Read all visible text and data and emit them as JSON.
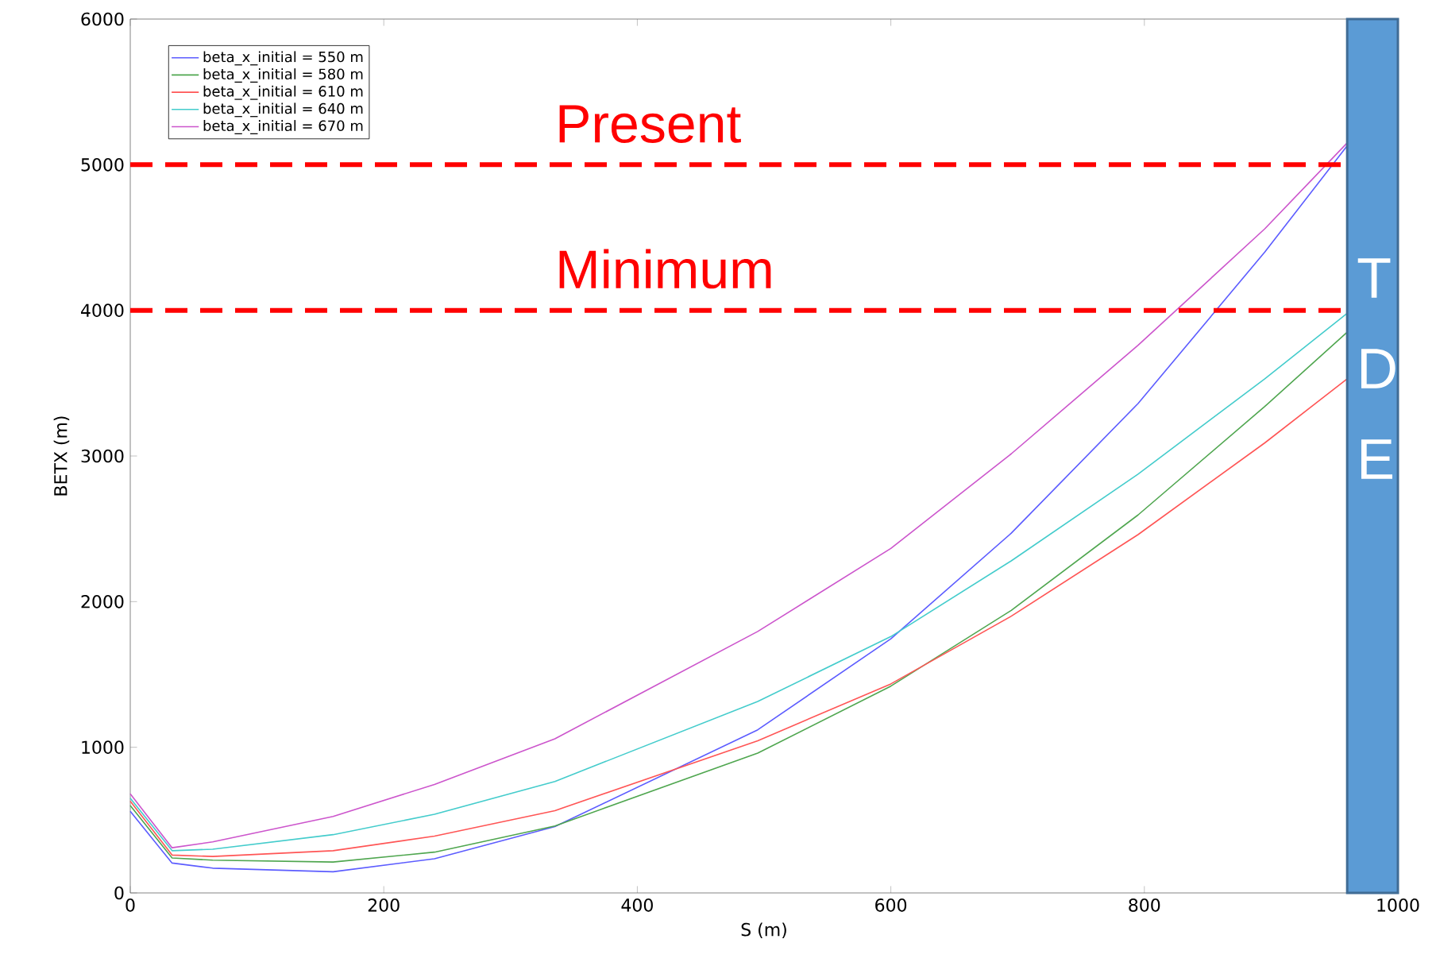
{
  "chart_data": {
    "type": "line",
    "xlabel": "S (m)",
    "ylabel": "BETX (m)",
    "x": [
      0,
      33,
      65,
      160,
      240,
      335,
      495,
      600,
      695,
      795,
      895,
      960
    ],
    "series": [
      {
        "name": "beta_x_initial = 550 m",
        "color": "#5c5cff",
        "values": [
          560,
          205,
          170,
          145,
          235,
          455,
          1120,
          1745,
          2470,
          3360,
          4400,
          5130
        ]
      },
      {
        "name": "beta_x_initial = 580 m",
        "color": "#4fa64f",
        "values": [
          600,
          240,
          225,
          212,
          280,
          460,
          960,
          1420,
          1940,
          2595,
          3340,
          3850
        ]
      },
      {
        "name": "beta_x_initial = 610 m",
        "color": "#ff5555",
        "values": [
          630,
          260,
          250,
          290,
          390,
          565,
          1045,
          1435,
          1900,
          2460,
          3090,
          3530
        ]
      },
      {
        "name": "beta_x_initial = 640 m",
        "color": "#44cccc",
        "values": [
          650,
          290,
          300,
          400,
          540,
          765,
          1315,
          1760,
          2280,
          2875,
          3530,
          3980
        ]
      },
      {
        "name": "beta_x_initial = 670 m",
        "color": "#cc55cc",
        "values": [
          680,
          310,
          350,
          525,
          745,
          1058,
          1795,
          2365,
          3015,
          3760,
          4560,
          5150
        ]
      }
    ],
    "xlim": [
      0,
      1000
    ],
    "ylim": [
      0,
      6000
    ],
    "xticks": [
      0,
      200,
      400,
      600,
      800,
      1000
    ],
    "yticks": [
      0,
      1000,
      2000,
      3000,
      4000,
      5000,
      6000
    ],
    "grid": false,
    "legend": "top left",
    "marker": "none",
    "line_style": "solid",
    "ref_lines": [
      {
        "axis": "y",
        "value": 5000,
        "label": "Present",
        "color": "#ff0000",
        "line_style": "dashed"
      },
      {
        "axis": "y",
        "value": 4000,
        "label": "Minimum",
        "color": "#ff0000",
        "line_style": "dashed"
      }
    ],
    "bands": [
      {
        "axis": "x",
        "from": 960,
        "to": 1000,
        "label": "T D E",
        "color": "#5b9bd5"
      }
    ]
  }
}
